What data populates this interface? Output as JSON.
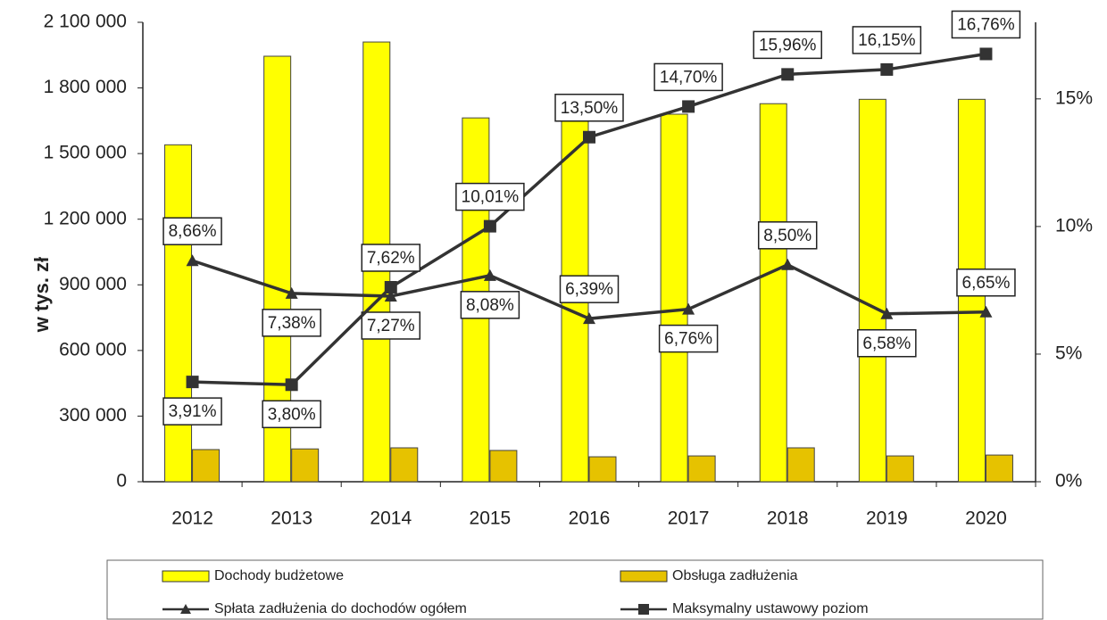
{
  "chart_data": {
    "type": "bar_line",
    "y_axis_label": "w tys. zł",
    "categories": [
      "2012",
      "2013",
      "2014",
      "2015",
      "2016",
      "2017",
      "2018",
      "2019",
      "2020"
    ],
    "series": [
      {
        "name": "Dochody budżetowe",
        "color": "#ffff00",
        "values": [
          1540000,
          1945000,
          2010000,
          1663000,
          1665000,
          1680000,
          1728000,
          1748000,
          1748000
        ]
      },
      {
        "name": "Obsługa zadłużenia",
        "color": "#e6c200",
        "values": [
          147000,
          150000,
          155000,
          143000,
          114000,
          118000,
          155000,
          118000,
          122000
        ]
      },
      {
        "name": "Spłata zadłużenia do dochodów ogółem",
        "color": "#333333",
        "marker": "triangle",
        "axis": "y2",
        "values": [
          8.66,
          7.38,
          7.27,
          8.08,
          6.39,
          6.76,
          8.5,
          6.58,
          6.65
        ],
        "value_labels": [
          "8,66%",
          "7,38%",
          "7,27%",
          "8,08%",
          "6,39%",
          "6,76%",
          "8,50%",
          "6,58%",
          "6,65%"
        ]
      },
      {
        "name": "Maksymalny ustawowy poziom",
        "color": "#333333",
        "marker": "square",
        "axis": "y2",
        "values": [
          3.91,
          3.8,
          7.62,
          10.01,
          13.5,
          14.7,
          15.96,
          16.15,
          16.76
        ],
        "value_labels": [
          "3,91%",
          "3,80%",
          "7,62%",
          "10,01%",
          "13,50%",
          "14,70%",
          "15,96%",
          "16,15%",
          "16,76%"
        ]
      }
    ],
    "ylim": [
      0,
      2100000
    ],
    "yticks": [
      0,
      {
        "value": 300000,
        "label": "300 000"
      },
      {
        "value": 600000,
        "label": "600 000"
      },
      {
        "value": 900000,
        "label": "900 000"
      },
      {
        "value": 1200000,
        "label": "1 200 000"
      },
      {
        "value": 1500000,
        "label": "1 500 000"
      },
      {
        "value": 1800000,
        "label": "1 800 000"
      },
      {
        "value": 2100000,
        "label": "2 100 000"
      }
    ],
    "y2lim": [
      0,
      18
    ],
    "y2ticks": [
      {
        "value": 0,
        "label": "0%"
      },
      {
        "value": 5,
        "label": "5%"
      },
      {
        "value": 10,
        "label": "10%"
      },
      {
        "value": 15,
        "label": "15%"
      }
    ],
    "legend": "bottom"
  }
}
